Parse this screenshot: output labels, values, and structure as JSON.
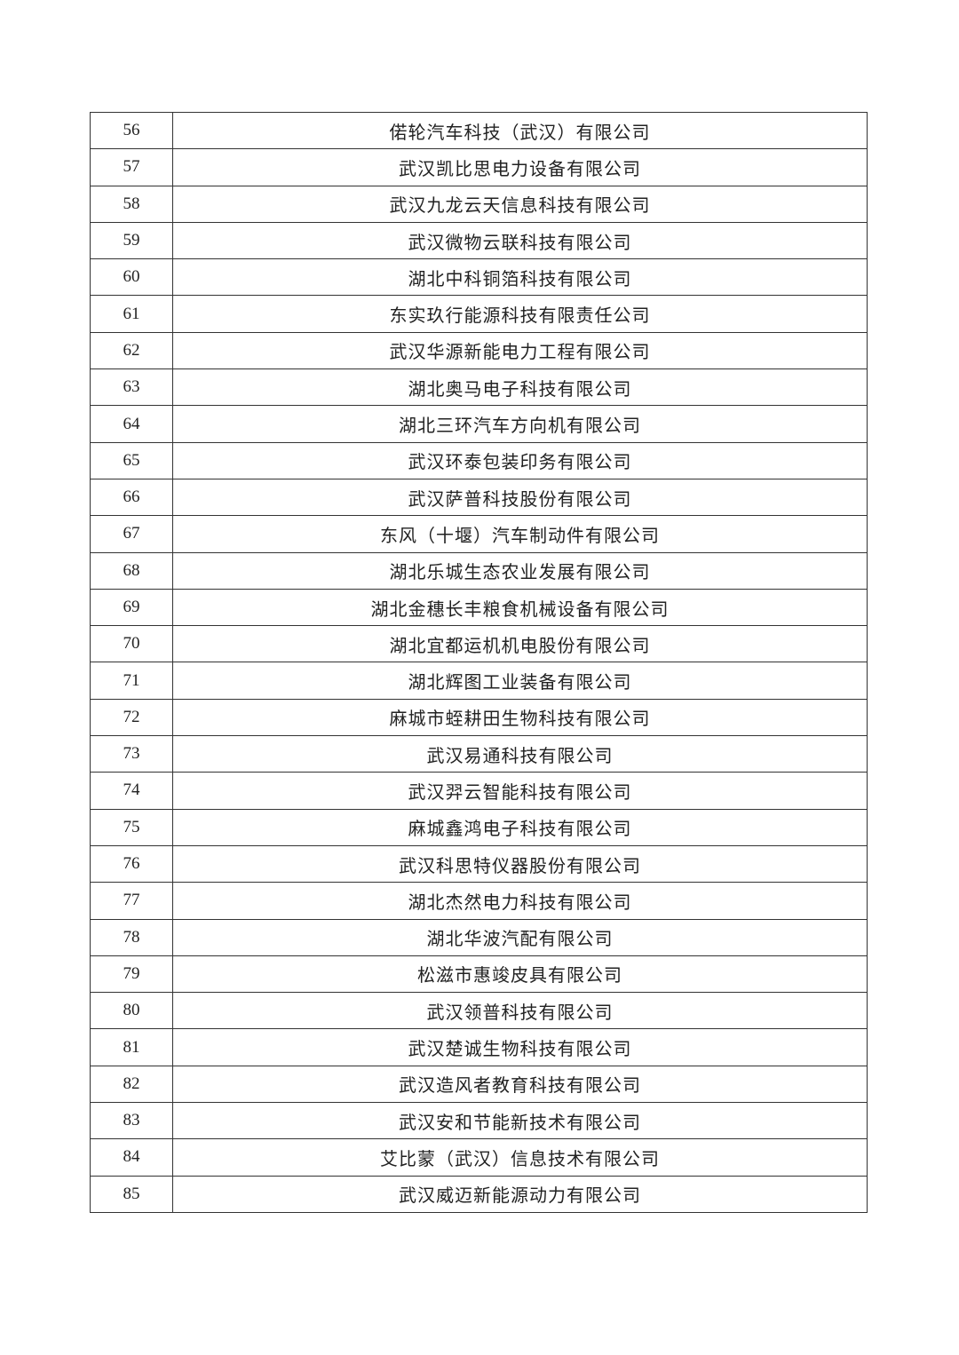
{
  "table": {
    "rows": [
      {
        "no": "56",
        "name": "偌轮汽车科技（武汉）有限公司"
      },
      {
        "no": "57",
        "name": "武汉凯比思电力设备有限公司"
      },
      {
        "no": "58",
        "name": "武汉九龙云天信息科技有限公司"
      },
      {
        "no": "59",
        "name": "武汉微物云联科技有限公司"
      },
      {
        "no": "60",
        "name": "湖北中科铜箔科技有限公司"
      },
      {
        "no": "61",
        "name": "东实玖行能源科技有限责任公司"
      },
      {
        "no": "62",
        "name": "武汉华源新能电力工程有限公司"
      },
      {
        "no": "63",
        "name": "湖北奥马电子科技有限公司"
      },
      {
        "no": "64",
        "name": "湖北三环汽车方向机有限公司"
      },
      {
        "no": "65",
        "name": "武汉环泰包装印务有限公司"
      },
      {
        "no": "66",
        "name": "武汉萨普科技股份有限公司"
      },
      {
        "no": "67",
        "name": "东风（十堰）汽车制动件有限公司"
      },
      {
        "no": "68",
        "name": "湖北乐城生态农业发展有限公司"
      },
      {
        "no": "69",
        "name": "湖北金穗长丰粮食机械设备有限公司"
      },
      {
        "no": "70",
        "name": "湖北宜都运机机电股份有限公司"
      },
      {
        "no": "71",
        "name": "湖北辉图工业装备有限公司"
      },
      {
        "no": "72",
        "name": "麻城市蛭耕田生物科技有限公司"
      },
      {
        "no": "73",
        "name": "武汉易通科技有限公司"
      },
      {
        "no": "74",
        "name": "武汉羿云智能科技有限公司"
      },
      {
        "no": "75",
        "name": "麻城鑫鸿电子科技有限公司"
      },
      {
        "no": "76",
        "name": "武汉科思特仪器股份有限公司"
      },
      {
        "no": "77",
        "name": "湖北杰然电力科技有限公司"
      },
      {
        "no": "78",
        "name": "湖北华波汽配有限公司"
      },
      {
        "no": "79",
        "name": "松滋市惠竣皮具有限公司"
      },
      {
        "no": "80",
        "name": "武汉领普科技有限公司"
      },
      {
        "no": "81",
        "name": "武汉楚诚生物科技有限公司"
      },
      {
        "no": "82",
        "name": "武汉造风者教育科技有限公司"
      },
      {
        "no": "83",
        "name": "武汉安和节能新技术有限公司"
      },
      {
        "no": "84",
        "name": "艾比蒙（武汉）信息技术有限公司"
      },
      {
        "no": "85",
        "name": "武汉威迈新能源动力有限公司"
      }
    ]
  }
}
